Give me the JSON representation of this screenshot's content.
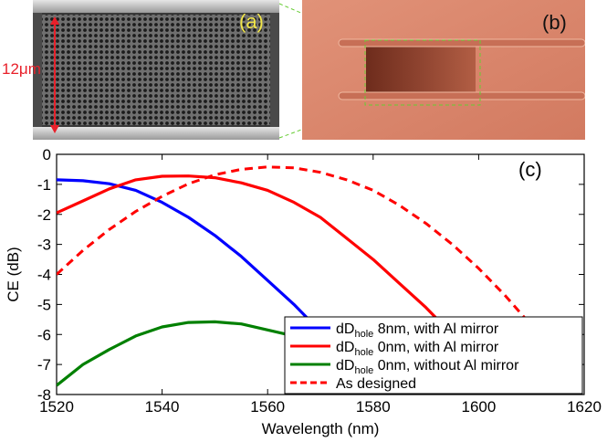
{
  "panel_a": {
    "label": "(a)",
    "scale_label": "12μm"
  },
  "panel_b": {
    "label": "(b)"
  },
  "chart_data": {
    "type": "line",
    "panel_label": "(c)",
    "xlabel": "Wavelength (nm)",
    "ylabel": "CE (dB)",
    "xlim": [
      1520,
      1620
    ],
    "ylim": [
      -8,
      0
    ],
    "xticks": [
      1520,
      1540,
      1560,
      1580,
      1600,
      1620
    ],
    "yticks": [
      0,
      -1,
      -2,
      -3,
      -4,
      -5,
      -6,
      -7,
      -8
    ],
    "grid": false,
    "legend_position": "bottom-right",
    "series": [
      {
        "legend_main": "dD",
        "legend_sub": "hole",
        "legend_rest": " 8nm, with Al mirror",
        "color": "#0000ff",
        "style": "solid",
        "x": [
          1520,
          1525,
          1530,
          1535,
          1540,
          1545,
          1550,
          1555,
          1560,
          1565,
          1570
        ],
        "y": [
          -0.85,
          -0.88,
          -0.98,
          -1.2,
          -1.6,
          -2.1,
          -2.7,
          -3.4,
          -4.2,
          -5.0,
          -5.9
        ]
      },
      {
        "legend_main": "dD",
        "legend_sub": "hole",
        "legend_rest": " 0nm, with Al mirror",
        "color": "#ff0000",
        "style": "solid",
        "x": [
          1520,
          1525,
          1530,
          1535,
          1540,
          1545,
          1550,
          1555,
          1560,
          1565,
          1570,
          1575,
          1580,
          1585,
          1590,
          1595,
          1600,
          1604
        ],
        "y": [
          -1.95,
          -1.55,
          -1.15,
          -0.85,
          -0.73,
          -0.72,
          -0.78,
          -0.95,
          -1.2,
          -1.6,
          -2.1,
          -2.8,
          -3.5,
          -4.3,
          -5.1,
          -6.0,
          -7.0,
          -7.9
        ]
      },
      {
        "legend_main": "dD",
        "legend_sub": "hole",
        "legend_rest": " 0nm, without Al mirror",
        "color": "#008000",
        "style": "solid",
        "x": [
          1520,
          1525,
          1530,
          1535,
          1540,
          1545,
          1550,
          1555,
          1560,
          1565
        ],
        "y": [
          -7.7,
          -7.0,
          -6.5,
          -6.05,
          -5.75,
          -5.6,
          -5.58,
          -5.65,
          -5.85,
          -6.05
        ]
      },
      {
        "legend_main": "As designed",
        "legend_sub": "",
        "legend_rest": "",
        "color": "#ff0000",
        "style": "dashed",
        "x": [
          1520,
          1525,
          1530,
          1535,
          1540,
          1545,
          1550,
          1555,
          1560,
          1565,
          1570,
          1575,
          1580,
          1585,
          1590,
          1595,
          1600,
          1605,
          1610,
          1614
        ],
        "y": [
          -4.0,
          -3.2,
          -2.5,
          -1.9,
          -1.4,
          -0.98,
          -0.68,
          -0.5,
          -0.42,
          -0.45,
          -0.6,
          -0.85,
          -1.2,
          -1.7,
          -2.3,
          -3.0,
          -3.8,
          -4.7,
          -5.7,
          -6.5
        ]
      }
    ]
  }
}
